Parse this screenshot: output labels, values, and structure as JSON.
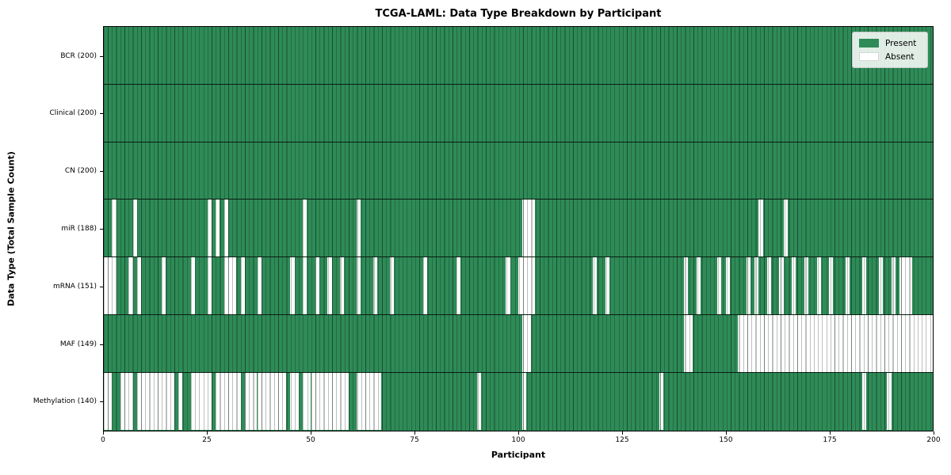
{
  "title": "TCGA-LAML: Data Type Breakdown by Participant",
  "xlabel": "Participant",
  "ylabel": "Data Type (Total Sample Count)",
  "legend": {
    "present_label": "Present",
    "absent_label": "Absent",
    "present_color": "#2e8b57",
    "absent_color": "#ffffff"
  },
  "x_ticks": [
    0,
    25,
    50,
    75,
    100,
    125,
    150,
    175,
    200
  ],
  "chart_data": {
    "type": "heatmap",
    "title": "TCGA-LAML: Data Type Breakdown by Participant",
    "xlabel": "Participant",
    "ylabel": "Data Type (Total Sample Count)",
    "x_range": [
      0,
      200
    ],
    "n_participants": 200,
    "grid": false,
    "legend_position": "upper right",
    "legend_entries": [
      "Present",
      "Absent"
    ],
    "present_color": "#2e8b57",
    "absent_color": "#ffffff",
    "rows": [
      {
        "label": "BCR (200)",
        "total": 200,
        "absent": []
      },
      {
        "label": "Clinical (200)",
        "total": 200,
        "absent": []
      },
      {
        "label": "CN (200)",
        "total": 200,
        "absent": []
      },
      {
        "label": "miR (188)",
        "total": 188,
        "absent": [
          2,
          7,
          25,
          27,
          29,
          48,
          61,
          101,
          102,
          103,
          158,
          164
        ]
      },
      {
        "label": "mRNA (151)",
        "total": 151,
        "absent": [
          0,
          1,
          2,
          6,
          8,
          14,
          21,
          25,
          29,
          30,
          31,
          33,
          37,
          45,
          48,
          51,
          54,
          57,
          61,
          65,
          69,
          77,
          85,
          97,
          100,
          101,
          102,
          103,
          118,
          121,
          140,
          143,
          148,
          150,
          155,
          157,
          160,
          163,
          166,
          169,
          172,
          175,
          179,
          183,
          187,
          190,
          192,
          193,
          194
        ]
      },
      {
        "label": "MAF (149)",
        "total": 149,
        "absent": [
          101,
          102,
          140,
          141,
          153,
          154,
          155,
          156,
          157,
          158,
          159,
          160,
          161,
          162,
          163,
          164,
          165,
          166,
          167,
          168,
          169,
          170,
          171,
          172,
          173,
          174,
          175,
          176,
          177,
          178,
          179,
          180,
          181,
          182,
          183,
          184,
          185,
          186,
          187,
          188,
          189,
          190,
          191,
          192,
          193,
          194,
          195,
          196,
          197,
          198,
          199
        ]
      },
      {
        "label": "Methylation (140)",
        "total": 140,
        "absent": [
          0,
          1,
          4,
          5,
          6,
          8,
          9,
          10,
          11,
          12,
          13,
          14,
          15,
          16,
          18,
          21,
          22,
          23,
          24,
          25,
          27,
          28,
          29,
          30,
          31,
          32,
          34,
          35,
          36,
          37,
          38,
          39,
          40,
          41,
          42,
          43,
          45,
          46,
          48,
          49,
          50,
          51,
          52,
          53,
          54,
          55,
          56,
          57,
          58,
          61,
          62,
          63,
          64,
          65,
          66,
          90,
          101,
          134,
          183,
          189
        ]
      }
    ]
  }
}
